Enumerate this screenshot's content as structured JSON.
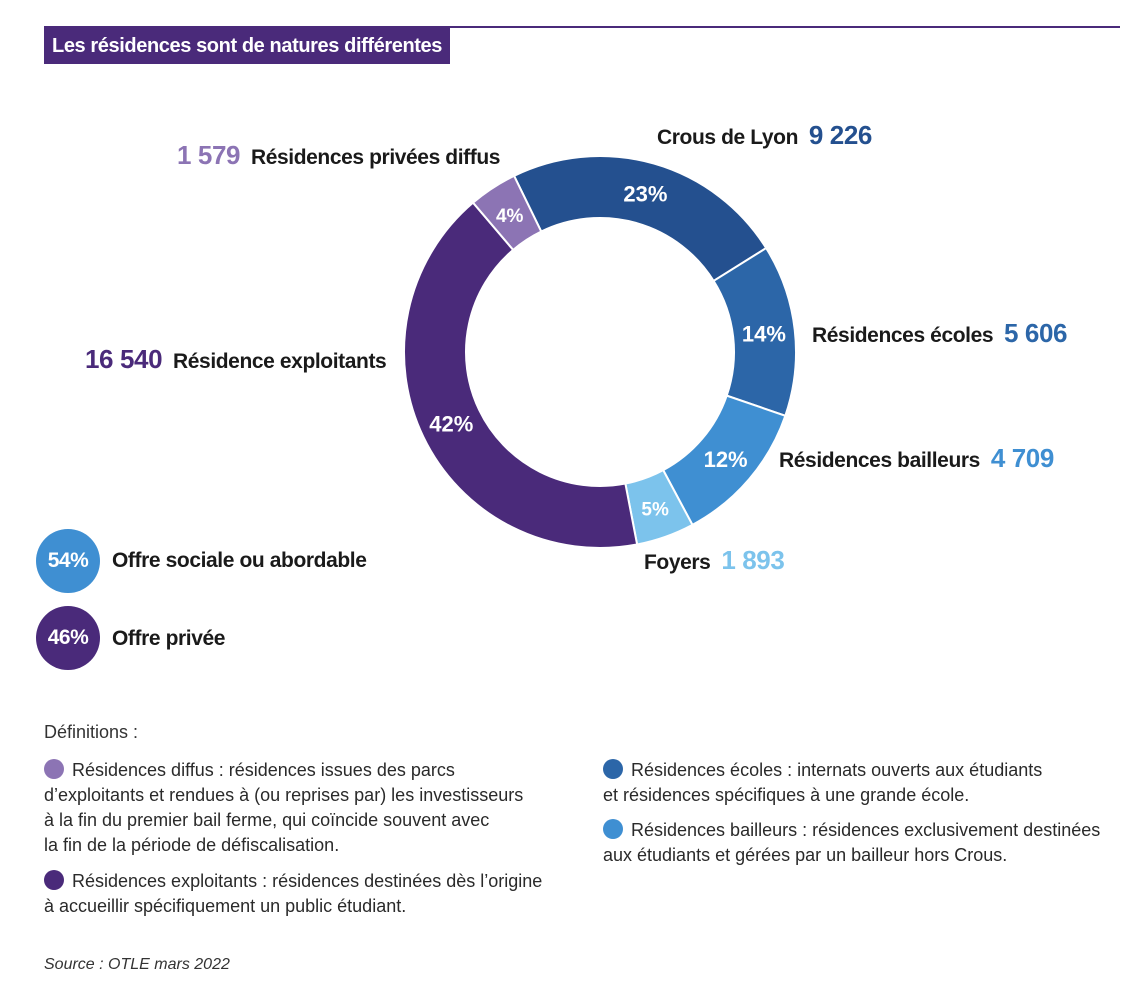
{
  "title": "Les résidences sont de natures différentes",
  "chart_data": {
    "type": "pie",
    "donut": true,
    "title": "Les résidences sont de natures différentes",
    "slices": [
      {
        "label": "Crous de Lyon",
        "value": 9226,
        "percent": "23%",
        "value_text": "9 226",
        "color": "#24508f"
      },
      {
        "label": "Résidences écoles",
        "value": 5606,
        "percent": "14%",
        "value_text": "5 606",
        "color": "#2c66a8"
      },
      {
        "label": "Résidences bailleurs",
        "value": 4709,
        "percent": "12%",
        "value_text": "4 709",
        "color": "#3f8fd2"
      },
      {
        "label": "Foyers",
        "value": 1893,
        "percent": "5%",
        "value_text": "1 893",
        "color": "#7cc3ec"
      },
      {
        "label": "Résidence exploitants",
        "value": 16540,
        "percent": "42%",
        "value_text": "16 540",
        "color": "#4a2a7a"
      },
      {
        "label": "Résidences privées diffus",
        "value": 1579,
        "percent": "4%",
        "value_text": "1 579",
        "color": "#8c74b4"
      }
    ]
  },
  "summary": [
    {
      "percent": "54%",
      "label": "Offre sociale ou abordable",
      "color": "#3f8fd2"
    },
    {
      "percent": "46%",
      "label": "Offre privée",
      "color": "#4a2a7a"
    }
  ],
  "definitions_title": "Définitions :",
  "definitions": [
    {
      "lines": [
        "Résidences diffus : résidences issues des parcs",
        "d’exploitants et rendues à (ou reprises par) les investisseurs",
        "à la fin du premier bail ferme, qui coïncide souvent avec",
        "la fin de la période de défiscalisation."
      ],
      "color": "#8c74b4"
    },
    {
      "lines": [
        "Résidences exploitants : résidences destinées dès l’origine",
        "à accueillir spécifiquement un public étudiant."
      ],
      "color": "#4a2a7a"
    },
    {
      "lines": [
        "Résidences écoles : internats ouverts aux étudiants",
        "et résidences spécifiques à une grande école."
      ],
      "color": "#2c66a8"
    },
    {
      "lines": [
        "Résidences bailleurs : résidences exclusivement destinées",
        "aux étudiants et gérées par un bailleur hors Crous."
      ],
      "color": "#3f8fd2"
    }
  ],
  "source": "Source : OTLE mars 2022"
}
